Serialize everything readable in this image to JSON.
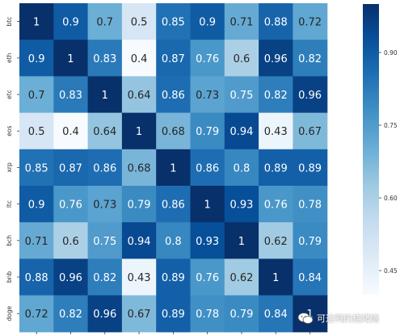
{
  "chart_data": {
    "type": "heatmap",
    "title": "",
    "xlabel": "",
    "ylabel": "",
    "x_categories": [
      "btc",
      "eth",
      "etc",
      "eos",
      "xrp",
      "ltc",
      "bch",
      "bnb",
      "doge"
    ],
    "y_categories": [
      "btc",
      "eth",
      "etc",
      "eos",
      "xrp",
      "ltc",
      "bch",
      "bnb",
      "doge"
    ],
    "values": [
      [
        1,
        0.9,
        0.7,
        0.5,
        0.85,
        0.9,
        0.71,
        0.88,
        0.72
      ],
      [
        0.9,
        1,
        0.83,
        0.4,
        0.87,
        0.76,
        0.6,
        0.96,
        0.82
      ],
      [
        0.7,
        0.83,
        1,
        0.64,
        0.86,
        0.73,
        0.75,
        0.82,
        0.96
      ],
      [
        0.5,
        0.4,
        0.64,
        1,
        0.68,
        0.79,
        0.94,
        0.43,
        0.67
      ],
      [
        0.85,
        0.87,
        0.86,
        0.68,
        1,
        0.86,
        0.8,
        0.89,
        0.89
      ],
      [
        0.9,
        0.76,
        0.73,
        0.79,
        0.86,
        1,
        0.93,
        0.76,
        0.78
      ],
      [
        0.71,
        0.6,
        0.75,
        0.94,
        0.8,
        0.93,
        1,
        0.62,
        0.79
      ],
      [
        0.88,
        0.96,
        0.82,
        0.43,
        0.89,
        0.76,
        0.62,
        1,
        0.84
      ],
      [
        0.72,
        0.82,
        0.96,
        0.67,
        0.89,
        0.78,
        0.79,
        0.84,
        1
      ]
    ],
    "colorscale": "Blues",
    "value_range": [
      0.4,
      1
    ],
    "colorbar_ticks": [
      0.45,
      0.6,
      0.75,
      0.9
    ],
    "colorbar_tick_labels": [
      "0.45",
      "0.60",
      "0.75",
      "0.90"
    ],
    "annotations": true,
    "grid": false
  },
  "watermark": {
    "text": "可达鸭的烧烤摊"
  }
}
